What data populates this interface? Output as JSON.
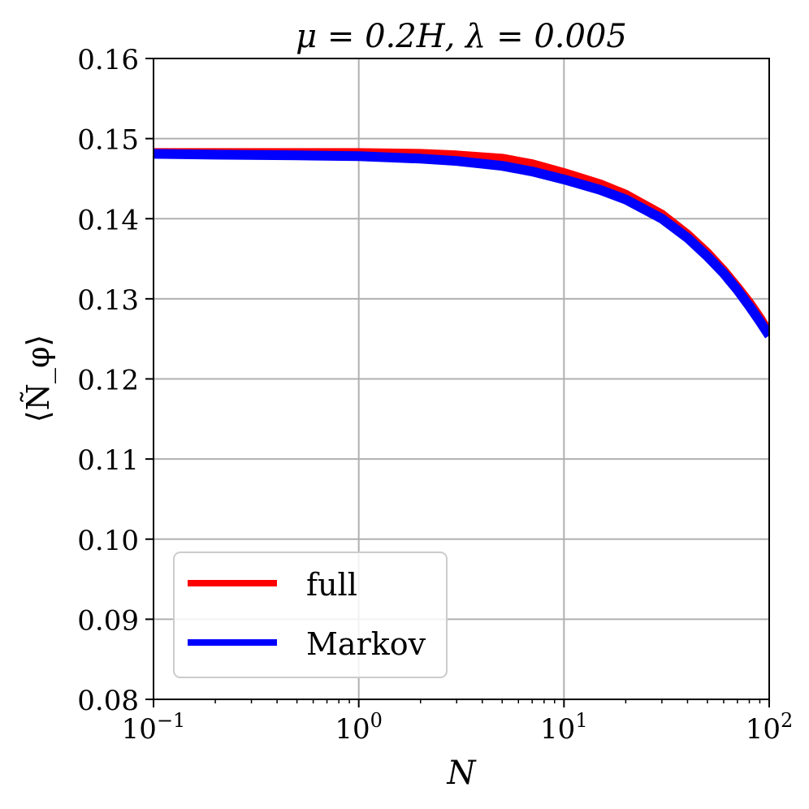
{
  "chart_data": {
    "type": "line",
    "title": "μ = 0.2H,  λ = 0.005",
    "xlabel": "N",
    "ylabel": "⟨Ñ_φ⟩",
    "xscale": "log",
    "xlim": [
      0.1,
      100
    ],
    "ylim": [
      0.08,
      0.16
    ],
    "grid": true,
    "legend_position": "lower left",
    "x_ticks": [
      {
        "value": 0.1,
        "base": "10",
        "exp": "−1"
      },
      {
        "value": 1,
        "base": "10",
        "exp": "0"
      },
      {
        "value": 10,
        "base": "10",
        "exp": "1"
      },
      {
        "value": 100,
        "base": "10",
        "exp": "2"
      }
    ],
    "y_ticks": [
      "0.08",
      "0.09",
      "0.10",
      "0.11",
      "0.12",
      "0.13",
      "0.14",
      "0.15",
      "0.16"
    ],
    "x": [
      0.1,
      0.2,
      0.5,
      1,
      2,
      3,
      5,
      7,
      10,
      15,
      20,
      30,
      40,
      50,
      60,
      70,
      80,
      90,
      100
    ],
    "series": [
      {
        "name": "full",
        "color": "#ff0000",
        "values": [
          0.1482,
          0.1482,
          0.1482,
          0.1482,
          0.1481,
          0.1479,
          0.1475,
          0.1468,
          0.1457,
          0.1443,
          0.143,
          0.1405,
          0.138,
          0.1357,
          0.1335,
          0.1314,
          0.1295,
          0.1276,
          0.1257
        ]
      },
      {
        "name": "Markov",
        "color": "#0000ff",
        "values": [
          0.1481,
          0.148,
          0.1479,
          0.1478,
          0.1475,
          0.1472,
          0.1466,
          0.1459,
          0.1449,
          0.1436,
          0.1424,
          0.14,
          0.1376,
          0.1353,
          0.1332,
          0.1311,
          0.1291,
          0.1272,
          0.1254
        ]
      }
    ]
  }
}
